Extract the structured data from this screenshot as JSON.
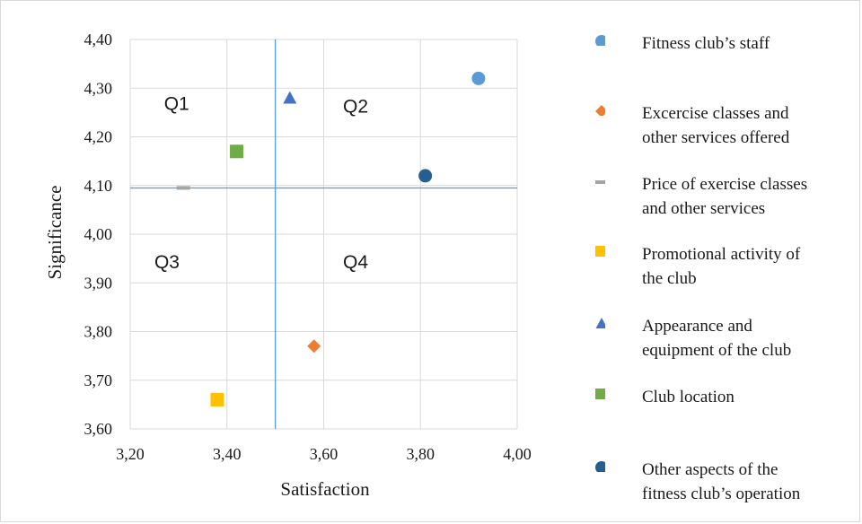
{
  "chart_data": {
    "type": "scatter",
    "xlabel": "Satisfaction",
    "ylabel": "Significance",
    "xlim": [
      3.2,
      4.0
    ],
    "ylim": [
      3.6,
      4.4
    ],
    "x_ticks": [
      "3,20",
      "3,40",
      "3,60",
      "3,80",
      "4,00"
    ],
    "y_ticks": [
      "3,60",
      "3,70",
      "3,80",
      "3,90",
      "4,00",
      "4,10",
      "4,20",
      "4,30",
      "4,40"
    ],
    "grid": true,
    "reference_lines": {
      "x": 3.5,
      "y": 4.095
    },
    "quadrant_labels": [
      {
        "label": "Q1",
        "x": 3.27,
        "y": 4.255
      },
      {
        "label": "Q2",
        "x": 3.64,
        "y": 4.25
      },
      {
        "label": "Q3",
        "x": 3.25,
        "y": 3.93
      },
      {
        "label": "Q4",
        "x": 3.64,
        "y": 3.93
      }
    ],
    "series": [
      {
        "name": "Fitness club’s staff",
        "marker": "circle",
        "color": "#5b9bd5",
        "x": 3.92,
        "y": 4.32
      },
      {
        "name": "Excercise classes and other services offered",
        "marker": "diamond",
        "color": "#ed7d31",
        "x": 3.58,
        "y": 3.77
      },
      {
        "name": "Price of exercise classes and other services",
        "marker": "dash",
        "color": "#a5a5a5",
        "x": 3.31,
        "y": 4.095
      },
      {
        "name": "Promotional activity of the club",
        "marker": "square",
        "color": "#ffc000",
        "x": 3.38,
        "y": 3.66
      },
      {
        "name": "Appearance and equipment of the club",
        "marker": "triangle",
        "color": "#4472c4",
        "x": 3.53,
        "y": 4.28
      },
      {
        "name": "Club location",
        "marker": "square",
        "color": "#70ad47",
        "x": 3.42,
        "y": 4.17
      },
      {
        "name": "Other aspects of the fitness club’s operation",
        "marker": "circle",
        "color": "#255e91",
        "x": 3.81,
        "y": 4.12
      }
    ],
    "legend_position": "right"
  },
  "legend": {
    "items": [
      {
        "lines": [
          "Fitness club’s staff"
        ]
      },
      {
        "lines": [
          "Excercise classes and",
          "other services offered"
        ]
      },
      {
        "lines": [
          "Price of exercise classes",
          "and other services"
        ]
      },
      {
        "lines": [
          "Promotional activity of",
          "the club"
        ]
      },
      {
        "lines": [
          "Appearance and",
          "equipment of the club"
        ]
      },
      {
        "lines": [
          "Club location"
        ]
      },
      {
        "lines": [
          "Other aspects of the",
          "fitness club’s operation"
        ]
      }
    ]
  }
}
